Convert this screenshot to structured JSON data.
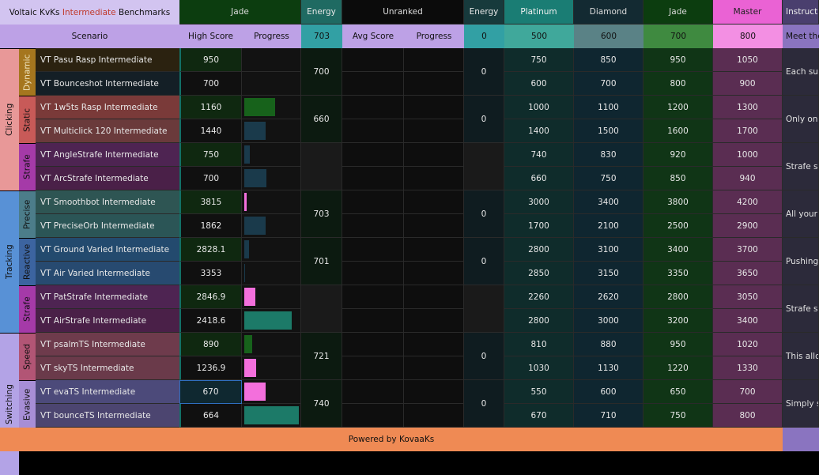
{
  "header": {
    "title_prefix": "Voltaic KvKs ",
    "title_highlight": "Intermediate",
    "title_suffix": " Benchmarks",
    "group_rank": "Jade",
    "energy_label": "Energy",
    "unranked": "Unranked",
    "energy_label_2": "Energy",
    "ranks": [
      "Platinum",
      "Diamond",
      "Jade",
      "Master"
    ],
    "instructions": "Instruct",
    "scenario": "Scenario",
    "high_score": "High Score",
    "progress": "Progress",
    "energy_value": "703",
    "avg_score": "Avg Score",
    "progress_2": "Progress",
    "energy_value_2": "0",
    "rank_thresholds": [
      "500",
      "600",
      "700",
      "800"
    ],
    "meet": "Meet the"
  },
  "categories": [
    "Clicking",
    "Tracking",
    "Switching"
  ],
  "subcategories": [
    "Dynamic",
    "Static",
    "Strafe",
    "Precise",
    "Reactive",
    "Strafe",
    "Speed",
    "Evasive"
  ],
  "group_energy": [
    "700",
    "660",
    "",
    "703",
    "701",
    "",
    "721",
    "740"
  ],
  "group_energy_2": [
    "0",
    "0",
    "",
    "0",
    "0",
    "",
    "0",
    "0"
  ],
  "instructions_text": [
    "Each sub",
    "Only one",
    "Strafe sc",
    "All your",
    "Pushing",
    "Strafe sc",
    "This allo",
    "Simply s"
  ],
  "scenarios": [
    {
      "name": "VT Pasu Rasp Intermediate",
      "score": "950",
      "progress": 0,
      "req": [
        "750",
        "850",
        "950",
        "1050"
      ]
    },
    {
      "name": "VT Bounceshot Intermediate",
      "score": "700",
      "progress": 0,
      "req": [
        "600",
        "700",
        "800",
        "900"
      ]
    },
    {
      "name": "VT 1w5ts Rasp Intermediate",
      "score": "1160",
      "progress": 0.55,
      "req": [
        "1000",
        "1100",
        "1200",
        "1300"
      ]
    },
    {
      "name": "VT Multiclick 120 Intermediate",
      "score": "1440",
      "progress": 0.38,
      "req": [
        "1400",
        "1500",
        "1600",
        "1700"
      ]
    },
    {
      "name": "VT AngleStrafe Intermediate",
      "score": "750",
      "progress": 0.1,
      "req": [
        "740",
        "830",
        "920",
        "1000"
      ]
    },
    {
      "name": "VT ArcStrafe Intermediate",
      "score": "700",
      "progress": 0.4,
      "req": [
        "660",
        "750",
        "850",
        "940"
      ]
    },
    {
      "name": "VT Smoothbot Intermediate",
      "score": "3815",
      "progress": 0.04,
      "req": [
        "3000",
        "3400",
        "3800",
        "4200"
      ]
    },
    {
      "name": "VT PreciseOrb Intermediate",
      "score": "1862",
      "progress": 0.38,
      "req": [
        "1700",
        "2100",
        "2500",
        "2900"
      ]
    },
    {
      "name": "VT Ground Varied Intermediate",
      "score": "2828.1",
      "progress": 0.09,
      "req": [
        "2800",
        "3100",
        "3400",
        "3700"
      ]
    },
    {
      "name": "VT Air Varied Intermediate",
      "score": "3353",
      "progress": 0.02,
      "req": [
        "2850",
        "3150",
        "3350",
        "3650"
      ]
    },
    {
      "name": "VT PatStrafe Intermediate",
      "score": "2846.9",
      "progress": 0.2,
      "req": [
        "2260",
        "2620",
        "2800",
        "3050"
      ]
    },
    {
      "name": "VT AirStrafe Intermediate",
      "score": "2418.6",
      "progress": 0.85,
      "req": [
        "2800",
        "3000",
        "3200",
        "3400"
      ]
    },
    {
      "name": "VT psalmTS Intermediate",
      "score": "890",
      "progress": 0.14,
      "req": [
        "810",
        "880",
        "950",
        "1020"
      ]
    },
    {
      "name": "VT skyTS Intermediate",
      "score": "1236.9",
      "progress": 0.22,
      "req": [
        "1030",
        "1130",
        "1220",
        "1330"
      ]
    },
    {
      "name": "VT evaTS Intermediate",
      "score": "670",
      "progress": 0.38,
      "req": [
        "550",
        "600",
        "650",
        "700"
      ]
    },
    {
      "name": "VT bounceTS Intermediate",
      "score": "664",
      "progress": 0.98,
      "req": [
        "670",
        "710",
        "750",
        "800"
      ]
    }
  ],
  "footer": "Powered by KovaaKs",
  "colors": {
    "title_bg": "#d2c4f0",
    "highlight": "#c0392b",
    "jade_header": "#0c3d0f",
    "energy_header": "#1f6a62",
    "plat_header": "#1a7d74",
    "dia_header": "#132a32",
    "master_header": "#ea62d4",
    "footer": "#ef8a54",
    "sub_header": "#bda1e6",
    "pink": "#f36fdc",
    "teal": "#1c7a68",
    "green": "#17621b",
    "navy": "#1a3a4b"
  }
}
